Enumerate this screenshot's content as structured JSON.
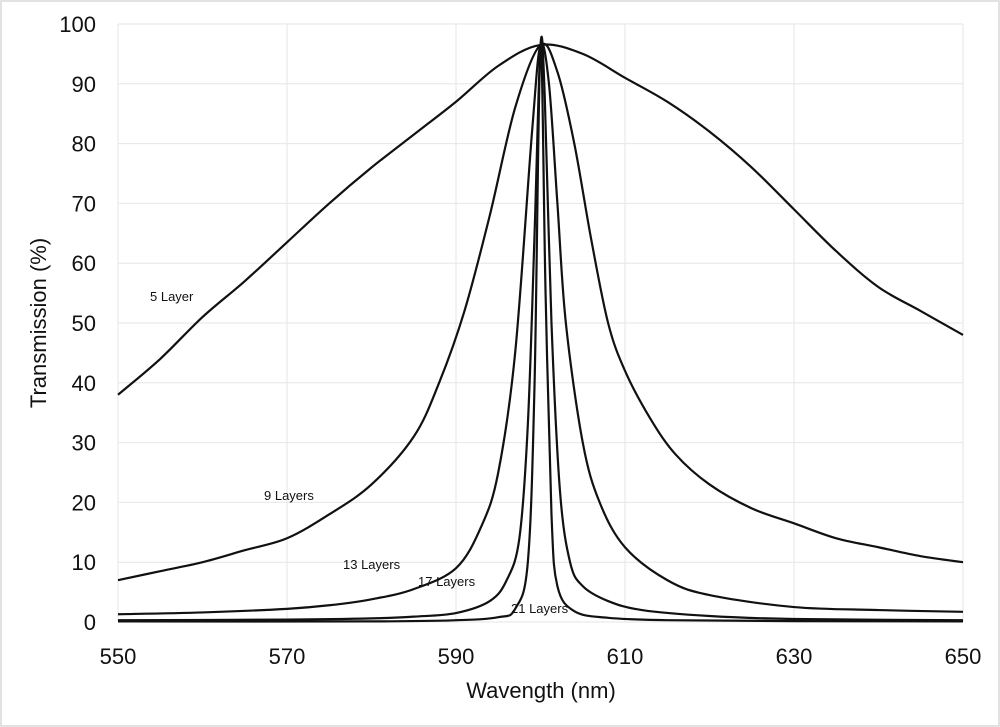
{
  "chart_data": {
    "type": "line",
    "title": "",
    "xlabel": "Wavength (nm)",
    "ylabel": "Transmission (%)",
    "xlim": [
      550,
      650
    ],
    "ylim": [
      0,
      100
    ],
    "x_ticks": [
      550,
      570,
      590,
      610,
      630,
      650
    ],
    "y_ticks": [
      0,
      10,
      20,
      30,
      40,
      50,
      60,
      70,
      80,
      90,
      100
    ],
    "grid": true,
    "legend": "none",
    "series": [
      {
        "name": "5 Layer",
        "points": [
          [
            550,
            38
          ],
          [
            555,
            44
          ],
          [
            560,
            51
          ],
          [
            565,
            57
          ],
          [
            570,
            63.5
          ],
          [
            575,
            70
          ],
          [
            580,
            76
          ],
          [
            585,
            81.5
          ],
          [
            590,
            87
          ],
          [
            595,
            93
          ],
          [
            600,
            96.5
          ],
          [
            605,
            95
          ],
          [
            610,
            91
          ],
          [
            615,
            87
          ],
          [
            620,
            82
          ],
          [
            625,
            76
          ],
          [
            630,
            69
          ],
          [
            635,
            62
          ],
          [
            640,
            56
          ],
          [
            645,
            52
          ],
          [
            650,
            48
          ]
        ]
      },
      {
        "name": "9 Layers",
        "points": [
          [
            550,
            7
          ],
          [
            555,
            8.5
          ],
          [
            560,
            10
          ],
          [
            565,
            12
          ],
          [
            570,
            14
          ],
          [
            575,
            18
          ],
          [
            580,
            23
          ],
          [
            585,
            31
          ],
          [
            588,
            40
          ],
          [
            591,
            52
          ],
          [
            594,
            68
          ],
          [
            597,
            86
          ],
          [
            600,
            96.5
          ],
          [
            602,
            92
          ],
          [
            604,
            80
          ],
          [
            606,
            64
          ],
          [
            608,
            50
          ],
          [
            610,
            42
          ],
          [
            613,
            34
          ],
          [
            616,
            28
          ],
          [
            620,
            23
          ],
          [
            625,
            19
          ],
          [
            630,
            16.5
          ],
          [
            635,
            14
          ],
          [
            640,
            12.5
          ],
          [
            645,
            11
          ],
          [
            650,
            10
          ]
        ]
      },
      {
        "name": "13 Layers",
        "points": [
          [
            550,
            1.3
          ],
          [
            560,
            1.6
          ],
          [
            570,
            2.2
          ],
          [
            575,
            2.8
          ],
          [
            580,
            3.8
          ],
          [
            585,
            5.5
          ],
          [
            590,
            9
          ],
          [
            593,
            16
          ],
          [
            595,
            25
          ],
          [
            597,
            45
          ],
          [
            599,
            82
          ],
          [
            600,
            96.5
          ],
          [
            601,
            90
          ],
          [
            602,
            70
          ],
          [
            603,
            50
          ],
          [
            605,
            30
          ],
          [
            607,
            20
          ],
          [
            610,
            12.5
          ],
          [
            615,
            7
          ],
          [
            620,
            4.5
          ],
          [
            630,
            2.5
          ],
          [
            640,
            2
          ],
          [
            650,
            1.7
          ]
        ]
      },
      {
        "name": "17 Layers",
        "points": [
          [
            550,
            0.3
          ],
          [
            570,
            0.4
          ],
          [
            580,
            0.6
          ],
          [
            585,
            0.9
          ],
          [
            590,
            1.5
          ],
          [
            594,
            3.5
          ],
          [
            596,
            7
          ],
          [
            597.5,
            14
          ],
          [
            598.5,
            33
          ],
          [
            599.3,
            65
          ],
          [
            600,
            96.5
          ],
          [
            600.5,
            88
          ],
          [
            601.3,
            50
          ],
          [
            602.3,
            22
          ],
          [
            603.5,
            10
          ],
          [
            605,
            6
          ],
          [
            608,
            3.5
          ],
          [
            612,
            2
          ],
          [
            620,
            1
          ],
          [
            630,
            0.5
          ],
          [
            650,
            0.3
          ]
        ]
      },
      {
        "name": "21 Layers",
        "points": [
          [
            550,
            0.1
          ],
          [
            580,
            0.1
          ],
          [
            590,
            0.3
          ],
          [
            595,
            0.8
          ],
          [
            597,
            2.2
          ],
          [
            598.5,
            10
          ],
          [
            599.3,
            40
          ],
          [
            600,
            96.5
          ],
          [
            600.6,
            55
          ],
          [
            601.3,
            18
          ],
          [
            602,
            6
          ],
          [
            604,
            1.8
          ],
          [
            608,
            0.7
          ],
          [
            615,
            0.3
          ],
          [
            630,
            0.15
          ],
          [
            650,
            0.1
          ]
        ]
      }
    ],
    "annotations": [
      "5 Layer",
      "9 Layers",
      "13 Layers",
      "17 Layers",
      "21 Layers"
    ]
  }
}
